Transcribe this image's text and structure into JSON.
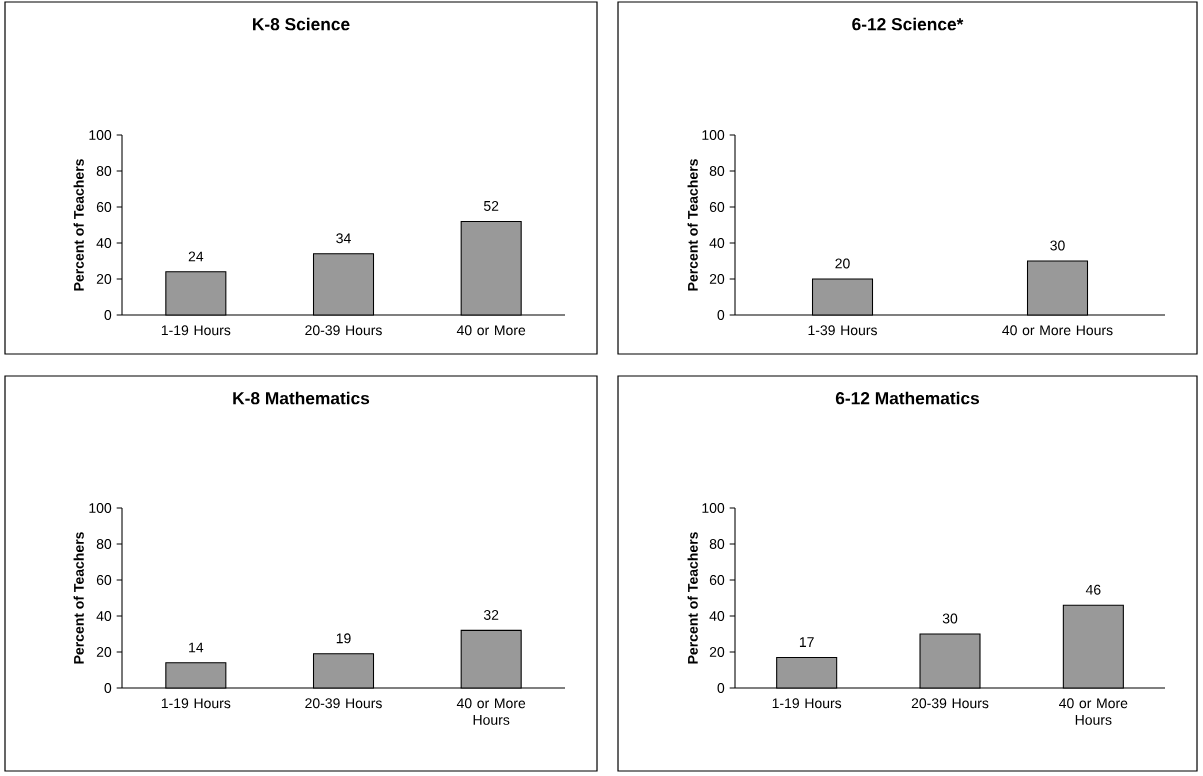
{
  "chart_data": [
    {
      "type": "bar",
      "title": "K-8 Science",
      "ylabel": "Percent of Teachers",
      "categories": [
        "1-19 Hours",
        "20-39 Hours",
        "40 or More"
      ],
      "values": [
        24,
        34,
        52
      ],
      "color": "#999999",
      "ylim": [
        0,
        100
      ],
      "yticks": [
        0,
        20,
        40,
        60,
        80,
        100
      ],
      "data_labels": true
    },
    {
      "type": "bar",
      "title": "6-12 Science*",
      "ylabel": "Percent of Teachers",
      "categories": [
        "1-39 Hours",
        "40 or More Hours"
      ],
      "values": [
        20,
        30
      ],
      "color": "#999999",
      "ylim": [
        0,
        100
      ],
      "yticks": [
        0,
        20,
        40,
        60,
        80,
        100
      ],
      "data_labels": true
    },
    {
      "type": "bar",
      "title": "K-8 Mathematics",
      "ylabel": "Percent of Teachers",
      "categories": [
        "1-19 Hours",
        "20-39 Hours",
        "40 or More Hours"
      ],
      "values": [
        14,
        19,
        32
      ],
      "color": "#999999",
      "ylim": [
        0,
        100
      ],
      "yticks": [
        0,
        20,
        40,
        60,
        80,
        100
      ],
      "data_labels": true
    },
    {
      "type": "bar",
      "title": "6-12 Mathematics",
      "ylabel": "Percent of Teachers",
      "categories": [
        "1-19 Hours",
        "20-39 Hours",
        "40 or More Hours"
      ],
      "values": [
        17,
        30,
        46
      ],
      "color": "#999999",
      "ylim": [
        0,
        100
      ],
      "yticks": [
        0,
        20,
        40,
        60,
        80,
        100
      ],
      "data_labels": true
    }
  ]
}
